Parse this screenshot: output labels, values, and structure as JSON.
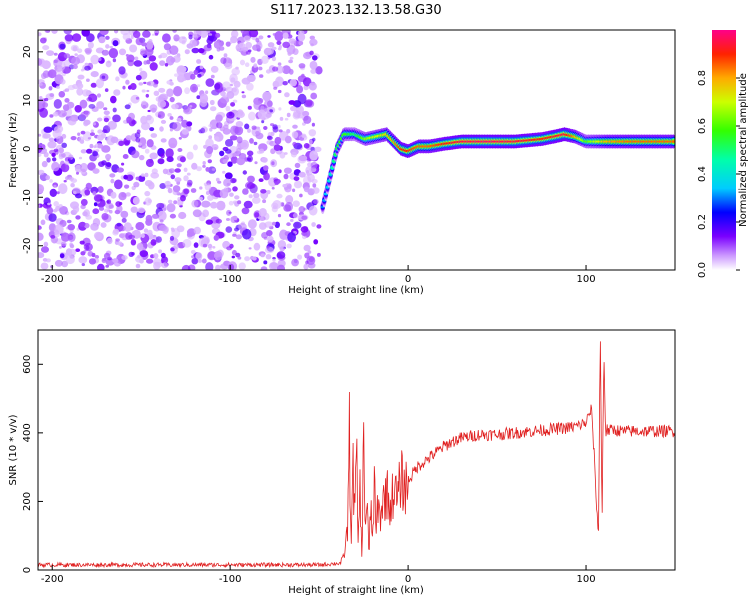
{
  "title": "S117.2023.132.13.58.G30",
  "chart_data": [
    {
      "type": "heatmap",
      "xlabel": "Height of straight line (km)",
      "ylabel": "Frequency (Hz)",
      "xlim": [
        -208,
        150
      ],
      "ylim": [
        -25,
        24.5
      ],
      "xticks": [
        -200,
        -100,
        0,
        100
      ],
      "yticks": [
        -20,
        -10,
        0,
        10,
        20
      ],
      "colorbar": {
        "label": "Normalized spectral amplitude",
        "ticks": [
          "0.0",
          "0.2",
          "0.4",
          "0.6",
          "0.8"
        ],
        "range": [
          0,
          1
        ]
      },
      "noise_region_x": [
        -208,
        -50
      ],
      "ridge": {
        "x": [
          -48,
          -44,
          -40,
          -36,
          -30,
          -24,
          -18,
          -12,
          -8,
          -4,
          0,
          6,
          12,
          20,
          30,
          45,
          60,
          75,
          82,
          88,
          94,
          100,
          106,
          112,
          125,
          140,
          150
        ],
        "y": [
          -12,
          -6,
          0,
          3,
          3,
          2,
          2.5,
          3,
          1.5,
          0,
          -0.5,
          0.5,
          0.5,
          1,
          1.5,
          1.5,
          1.5,
          2,
          2.5,
          3,
          2.5,
          1.5,
          1.5,
          1.5,
          1.5,
          1.5,
          1.5
        ],
        "amplitude": [
          0.3,
          0.4,
          0.55,
          0.6,
          0.5,
          0.65,
          0.7,
          0.75,
          0.8,
          0.9,
          0.9,
          0.85,
          0.85,
          0.9,
          0.95,
          0.98,
          0.95,
          0.9,
          0.92,
          0.95,
          0.8,
          0.6,
          0.7,
          0.8,
          0.85,
          0.85,
          0.85
        ]
      }
    },
    {
      "type": "line",
      "xlabel": "Height of straight line (km)",
      "ylabel": "SNR (10 * v/v)",
      "xlim": [
        -208,
        150
      ],
      "ylim": [
        0,
        700
      ],
      "xticks": [
        -200,
        -100,
        0,
        100
      ],
      "yticks": [
        0,
        200,
        400,
        600
      ],
      "color": "#e02020",
      "series": [
        {
          "x": [
            -208,
            -150,
            -100,
            -50,
            -38,
            -36,
            -34,
            -33,
            -32,
            -31,
            -30,
            -29,
            -28,
            -27,
            -26,
            -25,
            -24,
            -23,
            -22,
            -21,
            -20,
            -19,
            -18,
            -17,
            -16,
            -14,
            -12,
            -10,
            -8,
            -6,
            -4,
            -2,
            0,
            5,
            10,
            15,
            20,
            25,
            30,
            35,
            40,
            50,
            60,
            70,
            80,
            90,
            95,
            100,
            103,
            105,
            106,
            107,
            108,
            109,
            110,
            111,
            112,
            113,
            115,
            120,
            130,
            140,
            150
          ],
          "y": [
            15,
            15,
            15,
            15,
            20,
            40,
            120,
            390,
            90,
            300,
            150,
            340,
            60,
            260,
            30,
            390,
            120,
            220,
            20,
            200,
            80,
            250,
            100,
            200,
            150,
            200,
            230,
            180,
            240,
            200,
            270,
            240,
            260,
            300,
            320,
            340,
            360,
            375,
            385,
            390,
            395,
            395,
            400,
            405,
            410,
            415,
            420,
            430,
            470,
            300,
            170,
            110,
            700,
            120,
            650,
            400,
            410,
            405,
            410,
            405,
            405,
            405,
            405
          ]
        }
      ]
    }
  ]
}
